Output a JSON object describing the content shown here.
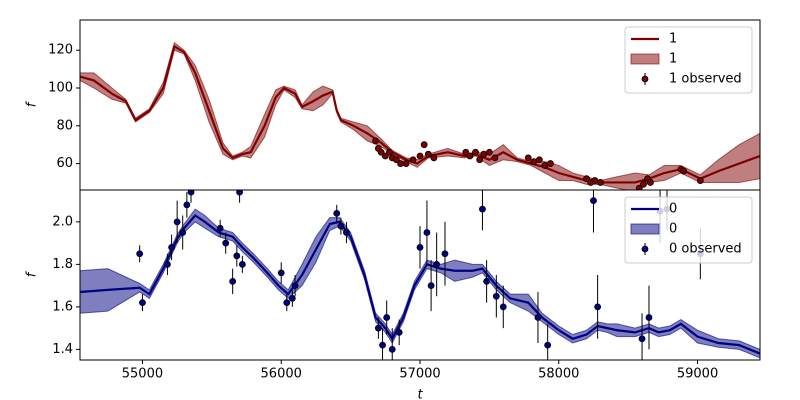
{
  "chart_data": [
    {
      "type": "line",
      "ylabel": "f",
      "xlim": [
        54550,
        59450
      ],
      "ylim": [
        46,
        136
      ],
      "yticks": [
        60,
        80,
        100,
        120
      ],
      "legend": "upper right",
      "x": [
        54550,
        54650,
        54780,
        54880,
        54950,
        55050,
        55150,
        55230,
        55300,
        55380,
        55480,
        55580,
        55650,
        55720,
        55780,
        55880,
        55960,
        56020,
        56100,
        56150,
        56230,
        56300,
        56370,
        56400,
        56430,
        56520,
        56620,
        56720,
        56800,
        56900,
        56980,
        57060,
        57200,
        57320,
        57400,
        57500,
        57600,
        57700,
        57800,
        57900,
        58000,
        58100,
        58200,
        58300,
        58420,
        58550,
        58650,
        58760,
        58880,
        59020,
        59150,
        59300,
        59450
      ],
      "series": [
        {
          "name": "1",
          "color": "#800000",
          "values": [
            106,
            104,
            97,
            93,
            83,
            88,
            100,
            122,
            119,
            108,
            88,
            68,
            63,
            65,
            66,
            80,
            95,
            100,
            97,
            90,
            93,
            96,
            98,
            88,
            83,
            80,
            76,
            71,
            66,
            62,
            60,
            64,
            66,
            64,
            65,
            62,
            66,
            62,
            60,
            58,
            55,
            53,
            51,
            50,
            50,
            50,
            52,
            55,
            57,
            52,
            56,
            60,
            64
          ]
        }
      ],
      "band": {
        "name": "1",
        "color": "#800000",
        "lower": [
          104,
          100,
          94,
          92,
          82,
          87,
          97,
          120,
          118,
          104,
          82,
          65,
          62,
          64,
          63,
          74,
          91,
          99,
          95,
          89,
          88,
          91,
          97,
          87,
          82,
          78,
          72,
          69,
          65,
          61,
          58,
          63,
          64,
          63,
          64,
          59,
          62,
          61,
          59,
          55,
          51,
          51,
          49,
          49,
          47,
          45,
          50,
          51,
          55,
          50,
          50,
          50,
          52
        ],
        "upper": [
          108,
          108,
          100,
          94,
          84,
          89,
          103,
          124,
          120,
          112,
          94,
          71,
          64,
          66,
          69,
          86,
          99,
          101,
          99,
          91,
          98,
          101,
          99,
          89,
          84,
          82,
          80,
          73,
          67,
          63,
          62,
          65,
          68,
          65,
          66,
          65,
          70,
          63,
          61,
          61,
          59,
          55,
          53,
          51,
          53,
          55,
          54,
          59,
          59,
          54,
          62,
          70,
          76
        ]
      },
      "observed": {
        "name": "1 observed",
        "color": "#800000",
        "x": [
          56680,
          56700,
          56720,
          56750,
          56780,
          56800,
          56830,
          56860,
          56900,
          56950,
          57000,
          57030,
          57060,
          57100,
          57330,
          57360,
          57400,
          57430,
          57460,
          57500,
          57540,
          57780,
          57820,
          57860,
          57900,
          57940,
          58200,
          58230,
          58260,
          58300,
          58580,
          58610,
          58640,
          58660,
          58880,
          58900,
          59020
        ],
        "values": [
          72,
          68,
          66,
          64,
          66,
          63,
          62,
          60,
          60,
          62,
          64,
          70,
          65,
          63,
          66,
          64,
          66,
          62,
          65,
          66,
          63,
          63,
          61,
          62,
          59,
          60,
          52,
          50,
          51,
          50,
          47,
          49,
          52,
          50,
          57,
          56,
          51
        ],
        "errors": [
          1.5,
          1.5,
          1.5,
          1.5,
          1.5,
          1.5,
          1.5,
          1.5,
          1.5,
          1.5,
          1.5,
          1.5,
          1.5,
          1.5,
          1.5,
          1.5,
          1.5,
          1.5,
          1.5,
          1.5,
          1.5,
          1.5,
          1.5,
          1.5,
          1.5,
          1.5,
          1.5,
          1.5,
          1.5,
          1.5,
          1.5,
          1.5,
          1.5,
          1.5,
          1.5,
          1.5,
          1.5
        ]
      }
    },
    {
      "type": "line",
      "ylabel": "f",
      "xlabel": "t",
      "xlim": [
        54550,
        59450
      ],
      "ylim": [
        1.35,
        2.15
      ],
      "xticks": [
        55000,
        56000,
        57000,
        58000,
        59000
      ],
      "yticks": [
        1.4,
        1.6,
        1.8,
        {
          "value": 2,
          "label": "2.0"
        }
      ],
      "legend": "upper right",
      "x": [
        54550,
        54750,
        54980,
        55050,
        55150,
        55250,
        55300,
        55380,
        55450,
        55550,
        55650,
        55720,
        55800,
        55900,
        55980,
        56050,
        56150,
        56250,
        56350,
        56420,
        56500,
        56600,
        56680,
        56750,
        56800,
        56880,
        56960,
        57050,
        57150,
        57250,
        57380,
        57450,
        57550,
        57650,
        57780,
        57880,
        58000,
        58100,
        58200,
        58280,
        58350,
        58420,
        58550,
        58650,
        58720,
        58800,
        58880,
        59000,
        59150,
        59300,
        59450
      ],
      "series": [
        {
          "name": "0",
          "color": "#000080",
          "values": [
            1.67,
            1.68,
            1.69,
            1.66,
            1.78,
            1.92,
            1.97,
            2.03,
            2.0,
            1.95,
            1.93,
            1.88,
            1.83,
            1.76,
            1.7,
            1.66,
            1.75,
            1.87,
            1.99,
            2.0,
            1.93,
            1.75,
            1.55,
            1.5,
            1.45,
            1.55,
            1.7,
            1.8,
            1.78,
            1.77,
            1.77,
            1.78,
            1.7,
            1.64,
            1.62,
            1.55,
            1.49,
            1.45,
            1.47,
            1.51,
            1.5,
            1.49,
            1.48,
            1.5,
            1.48,
            1.49,
            1.52,
            1.46,
            1.43,
            1.42,
            1.38
          ]
        }
      ],
      "band": {
        "name": "0",
        "color": "#000080",
        "lower": [
          1.57,
          1.58,
          1.67,
          1.64,
          1.76,
          1.9,
          1.95,
          2.0,
          1.97,
          1.93,
          1.91,
          1.86,
          1.81,
          1.74,
          1.68,
          1.64,
          1.7,
          1.81,
          1.96,
          1.98,
          1.91,
          1.73,
          1.53,
          1.48,
          1.43,
          1.53,
          1.68,
          1.78,
          1.76,
          1.72,
          1.74,
          1.76,
          1.68,
          1.62,
          1.58,
          1.53,
          1.47,
          1.43,
          1.45,
          1.49,
          1.48,
          1.46,
          1.46,
          1.48,
          1.46,
          1.47,
          1.5,
          1.43,
          1.41,
          1.4,
          1.36
        ],
        "upper": [
          1.77,
          1.78,
          1.71,
          1.68,
          1.8,
          1.94,
          1.99,
          2.06,
          2.03,
          1.97,
          1.95,
          1.9,
          1.85,
          1.78,
          1.72,
          1.68,
          1.8,
          1.93,
          2.02,
          2.02,
          1.95,
          1.77,
          1.57,
          1.52,
          1.47,
          1.57,
          1.72,
          1.82,
          1.8,
          1.82,
          1.8,
          1.8,
          1.72,
          1.66,
          1.66,
          1.57,
          1.51,
          1.47,
          1.49,
          1.53,
          1.52,
          1.52,
          1.5,
          1.52,
          1.5,
          1.51,
          1.54,
          1.49,
          1.45,
          1.44,
          1.4
        ]
      },
      "observed": {
        "name": "0 observed",
        "color": "#000080",
        "x": [
          54980,
          55000,
          55180,
          55210,
          55250,
          55290,
          55320,
          55350,
          55560,
          55600,
          55650,
          55680,
          55720,
          55700,
          56000,
          56040,
          56080,
          56100,
          56400,
          56430,
          56470,
          56700,
          56730,
          56760,
          56800,
          56850,
          57000,
          57050,
          57080,
          57120,
          57180,
          57450,
          57480,
          57550,
          57600,
          57850,
          57920,
          58250,
          58280,
          58600,
          58650,
          58730,
          58780,
          59020
        ],
        "values": [
          1.85,
          1.62,
          1.8,
          1.88,
          2.0,
          1.95,
          2.08,
          2.14,
          1.97,
          1.9,
          1.72,
          1.84,
          1.8,
          2.14,
          1.76,
          1.62,
          1.64,
          1.7,
          2.04,
          1.98,
          1.95,
          1.5,
          1.42,
          1.55,
          1.4,
          1.48,
          1.88,
          1.95,
          1.7,
          1.8,
          1.85,
          2.06,
          1.72,
          1.65,
          1.6,
          1.55,
          1.42,
          2.1,
          1.6,
          1.45,
          1.55,
          2.05,
          2.06,
          1.85
        ],
        "errors": [
          0.04,
          0.04,
          0.05,
          0.06,
          0.1,
          0.08,
          0.06,
          0.05,
          0.04,
          0.05,
          0.06,
          0.05,
          0.04,
          0.05,
          0.05,
          0.04,
          0.04,
          0.05,
          0.04,
          0.04,
          0.05,
          0.05,
          0.08,
          0.08,
          0.1,
          0.06,
          0.1,
          0.15,
          0.12,
          0.15,
          0.15,
          0.1,
          0.1,
          0.1,
          0.1,
          0.12,
          0.1,
          0.15,
          0.15,
          0.12,
          0.15,
          0.15,
          0.1,
          0.12
        ]
      }
    }
  ]
}
